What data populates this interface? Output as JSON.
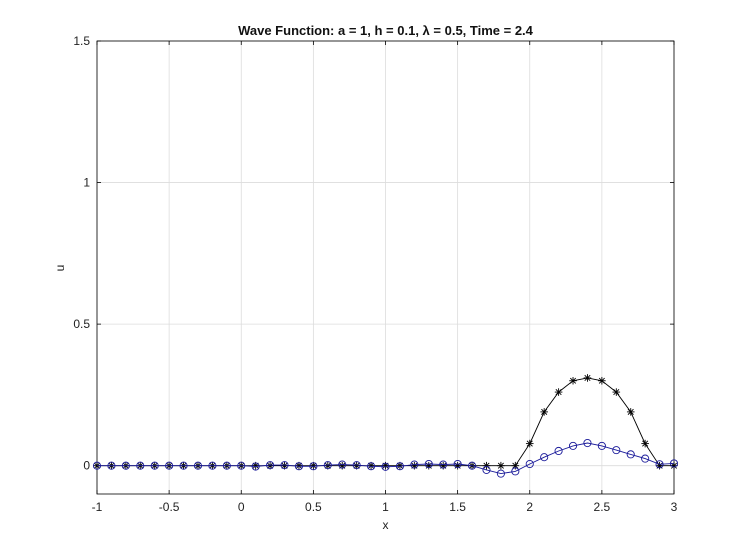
{
  "chart_data": {
    "type": "line",
    "title": "Wave Function: a = 1, h = 0.1, λ = 0.5, Time = 2.4",
    "xlabel": "x",
    "ylabel": "u",
    "xlim": [
      -1,
      3
    ],
    "ylim": [
      -0.1,
      1.5
    ],
    "grid": true,
    "legend": "none",
    "xticks": [
      -1,
      -0.5,
      0,
      0.5,
      1,
      1.5,
      2,
      2.5,
      3
    ],
    "xtick_labels": [
      "-1",
      "-0.5",
      "0",
      "0.5",
      "1",
      "1.5",
      "2",
      "2.5",
      "3"
    ],
    "yticks": [
      0,
      0.5,
      1,
      1.5
    ],
    "ytick_labels": [
      "0",
      "0.5",
      "1",
      "1.5"
    ],
    "x": [
      -1.0,
      -0.9,
      -0.8,
      -0.7,
      -0.6,
      -0.5,
      -0.4,
      -0.3,
      -0.2,
      -0.1,
      0.0,
      0.1,
      0.2,
      0.3,
      0.4,
      0.5,
      0.6,
      0.7,
      0.8,
      0.9,
      1.0,
      1.1,
      1.2,
      1.3,
      1.4,
      1.5,
      1.6,
      1.7,
      1.8,
      1.9,
      2.0,
      2.1,
      2.2,
      2.3,
      2.4,
      2.5,
      2.6,
      2.7,
      2.8,
      2.9,
      3.0
    ],
    "series": [
      {
        "marker": "star",
        "color": "#000000",
        "values": [
          0,
          0,
          0,
          0,
          0,
          0,
          0,
          0,
          0,
          0,
          0,
          0,
          0,
          0,
          0,
          0,
          0,
          0,
          0,
          0,
          0,
          0,
          0,
          0,
          0,
          0,
          0,
          0,
          0,
          0,
          0.078,
          0.19,
          0.26,
          0.3,
          0.31,
          0.3,
          0.26,
          0.19,
          0.078,
          0,
          0
        ]
      },
      {
        "marker": "circle",
        "color": "#1a1a9a",
        "values": [
          0,
          0,
          0,
          0,
          0,
          0,
          0,
          0,
          0,
          0,
          0,
          -0.003,
          0.002,
          0.002,
          -0.002,
          -0.002,
          0.002,
          0.004,
          0.002,
          -0.002,
          -0.004,
          -0.002,
          0.004,
          0.006,
          0.004,
          0.006,
          0.0,
          -0.015,
          -0.028,
          -0.02,
          0.006,
          0.03,
          0.052,
          0.07,
          0.08,
          0.07,
          0.055,
          0.04,
          0.025,
          0.005,
          0.008
        ]
      }
    ]
  }
}
